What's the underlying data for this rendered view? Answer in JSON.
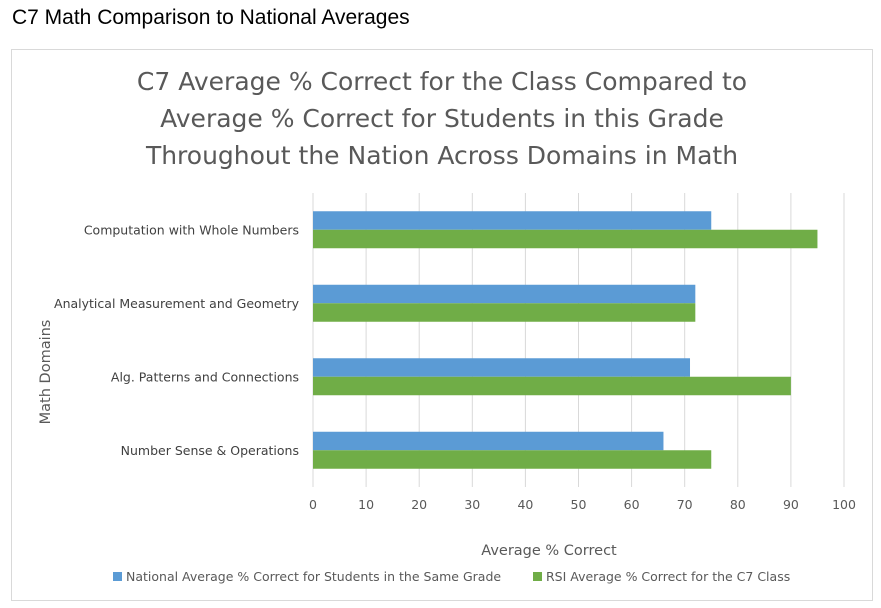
{
  "page": {
    "heading": "C7 Math Comparison to National Averages"
  },
  "chart_data": {
    "type": "bar",
    "orientation": "horizontal",
    "title": "C7 Average % Correct for the Class Compared to Average % Correct for Students in this Grade Throughout the Nation Across Domains in Math",
    "title_lines": [
      "C7 Average % Correct for the Class Compared to",
      "Average % Correct for Students in this Grade",
      "Throughout the Nation Across Domains in Math"
    ],
    "categories": [
      "Computation with Whole Numbers",
      "Analytical Measurement and Geometry",
      "Alg. Patterns and Connections",
      "Number Sense & Operations"
    ],
    "series": [
      {
        "name": "National Average % Correct for Students in the Same Grade",
        "color": "#5b9bd5",
        "values": [
          75,
          72,
          71,
          66
        ]
      },
      {
        "name": "RSI Average % Correct for the C7 Class",
        "color": "#70ad47",
        "values": [
          95,
          72,
          90,
          75
        ]
      }
    ],
    "xlabel": "Average % Correct",
    "ylabel": "Math Domains",
    "xlim": [
      0,
      100
    ],
    "xticks": [
      "0",
      "10",
      "20",
      "30",
      "40",
      "50",
      "60",
      "70",
      "80",
      "90",
      "100"
    ],
    "grid": true,
    "legend": "bottom"
  }
}
